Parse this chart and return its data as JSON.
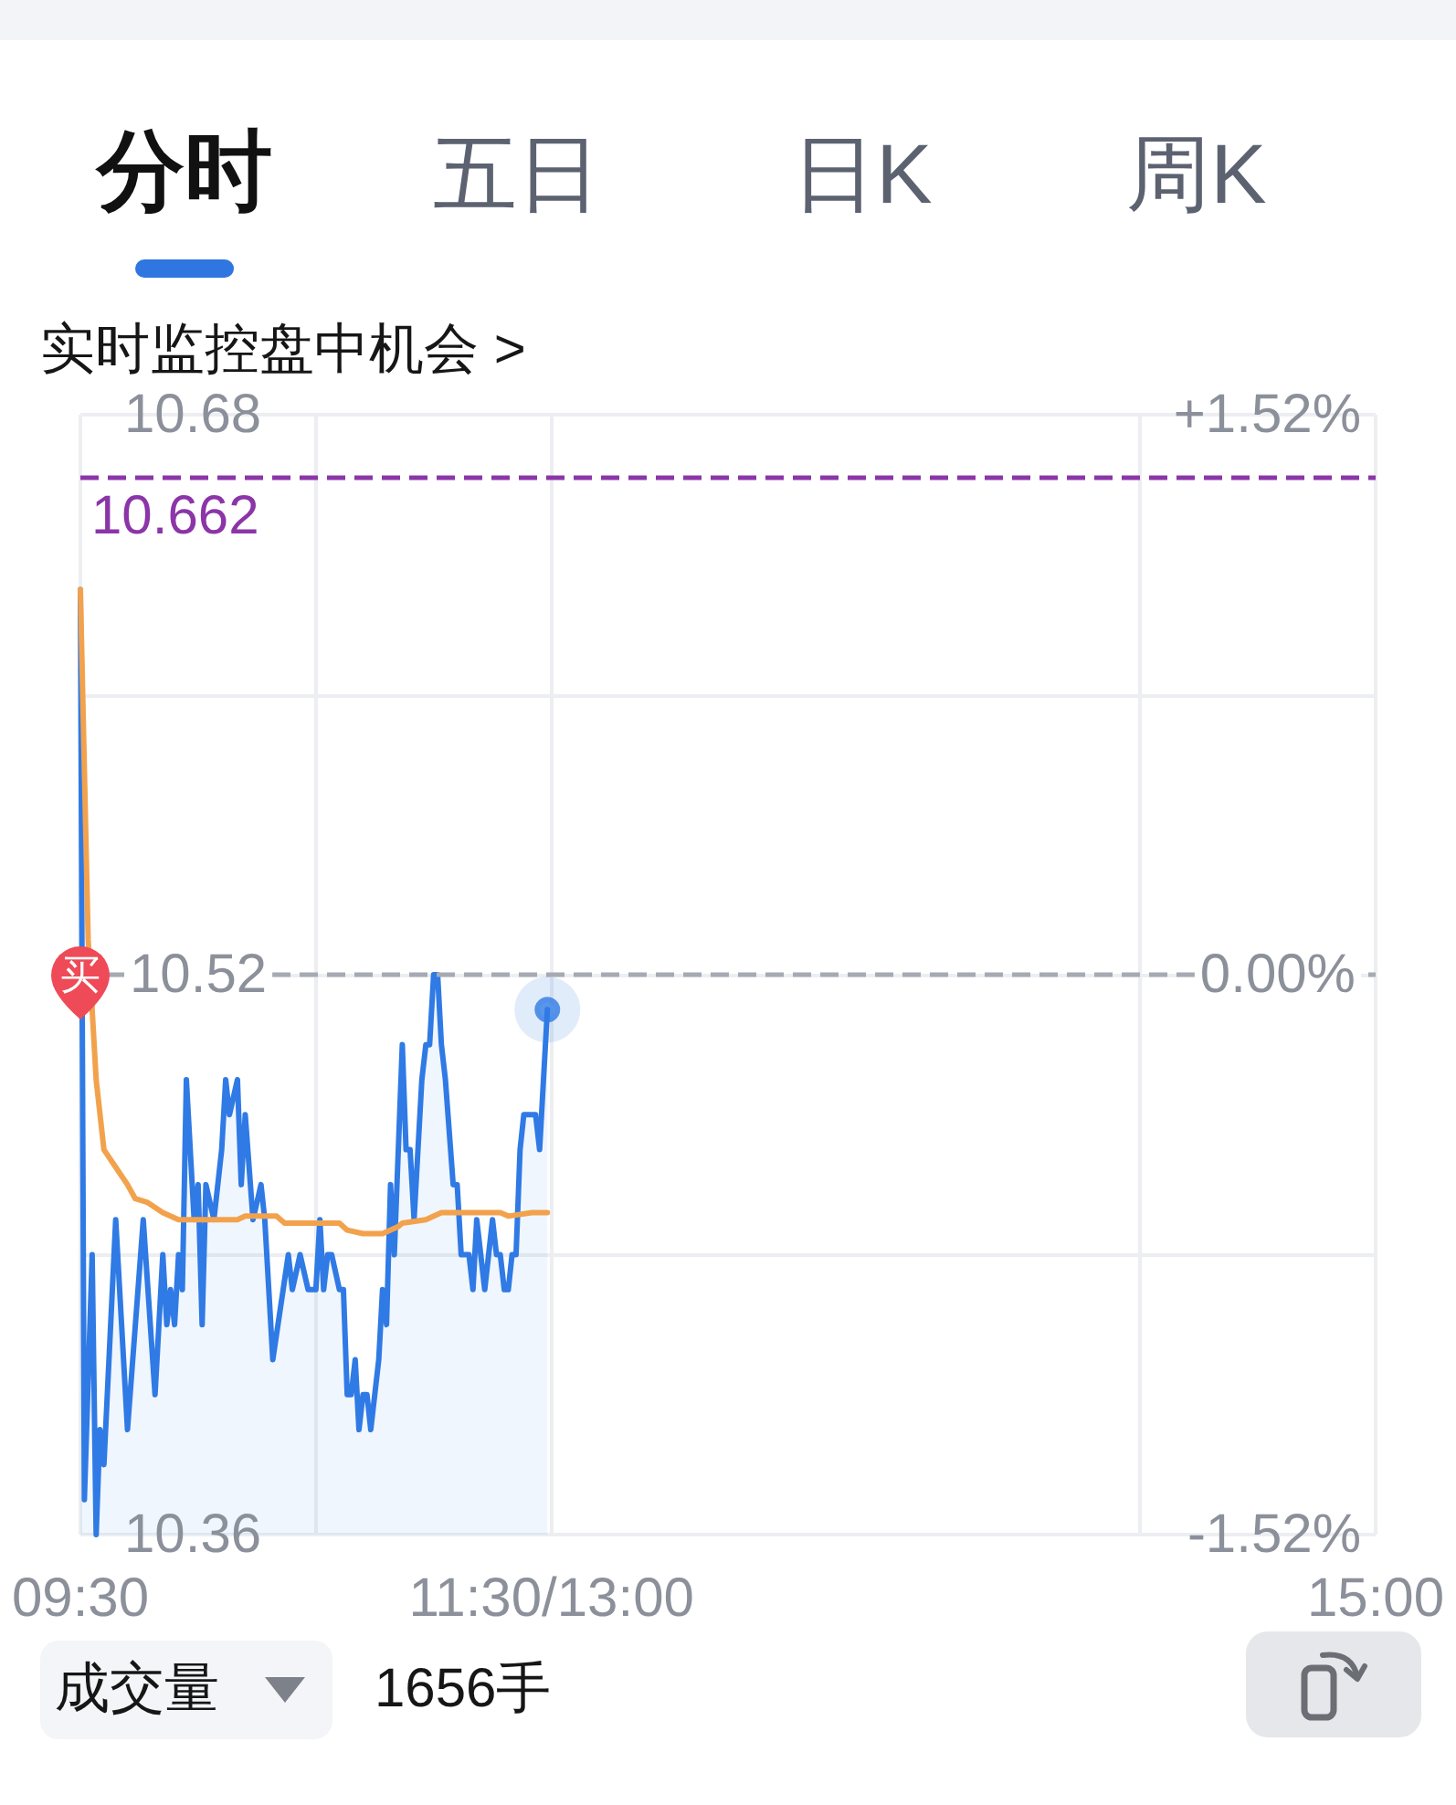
{
  "chart_data": {
    "type": "line",
    "annotations": [
      "分时",
      "五日",
      "日K",
      "周K",
      "实时监控盘中机会 >",
      "成交量",
      "1656手",
      {
        "text": "买",
        "x": 9.5,
        "y": 10.52
      }
    ],
    "xlim": [
      9.5,
      15
    ],
    "xticks": [
      {
        "value": 9.5,
        "label": "09:30"
      },
      {
        "value": 10.5,
        "label": null
      },
      {
        "value": 11.5,
        "label": "11:30/13:00"
      },
      {
        "value": 14,
        "label": null
      },
      {
        "value": 15,
        "label": "15:00"
      }
    ],
    "ylim": [
      10.36,
      10.68
    ],
    "yticks": [
      10.36,
      {
        "value": 10.44,
        "label": null
      },
      10.52,
      {
        "value": 10.6,
        "label": null
      },
      10.68
    ],
    "y2lim": [
      -1.52,
      1.52
    ],
    "y2ticks": [
      {
        "value": -1.52,
        "label": "-1.52%"
      },
      {
        "value": 0,
        "label": "0.00%"
      },
      {
        "value": 1.52,
        "label": "+1.52%"
      }
    ],
    "grid": true,
    "ref_lines": [
      {
        "axis": "y",
        "value": 10.662,
        "label": "10.662",
        "color": "#8b35a8",
        "line_style": "dashed"
      },
      {
        "axis": "y",
        "value": 10.52,
        "color": "#a6aab2",
        "line_style": "dashed"
      }
    ],
    "series": [
      {
        "type": "area",
        "color": "#2f7ae5",
        "x": [
          9.5,
          9.517,
          9.55,
          9.567,
          9.583,
          9.6,
          9.65,
          9.7,
          9.767,
          9.817,
          9.85,
          9.867,
          9.883,
          9.9,
          9.917,
          9.933,
          9.95,
          9.983,
          10,
          10.017,
          10.033,
          10.067,
          10.1,
          10.117,
          10.133,
          10.167,
          10.183,
          10.2,
          10.233,
          10.267,
          10.283,
          10.317,
          10.383,
          10.4,
          10.433,
          10.467,
          10.5,
          10.517,
          10.533,
          10.55,
          10.567,
          10.6,
          10.617,
          10.633,
          10.65,
          10.667,
          10.683,
          10.7,
          10.717,
          10.733,
          10.767,
          10.783,
          10.8,
          10.817,
          10.833,
          10.85,
          10.867,
          10.883,
          10.9,
          10.917,
          10.95,
          10.967,
          10.983,
          11,
          11.017,
          11.033,
          11.05,
          11.083,
          11.1,
          11.117,
          11.15,
          11.167,
          11.183,
          11.217,
          11.25,
          11.267,
          11.283,
          11.3,
          11.317,
          11.333,
          11.35,
          11.367,
          11.383,
          11.433,
          11.45,
          11.483
        ],
        "values": [
          10.63,
          10.37,
          10.44,
          10.36,
          10.39,
          10.38,
          10.45,
          10.39,
          10.45,
          10.4,
          10.44,
          10.42,
          10.43,
          10.42,
          10.44,
          10.43,
          10.49,
          10.45,
          10.46,
          10.42,
          10.46,
          10.45,
          10.47,
          10.49,
          10.48,
          10.49,
          10.46,
          10.48,
          10.45,
          10.46,
          10.45,
          10.41,
          10.44,
          10.43,
          10.44,
          10.43,
          10.43,
          10.45,
          10.43,
          10.44,
          10.44,
          10.43,
          10.43,
          10.4,
          10.4,
          10.41,
          10.39,
          10.4,
          10.4,
          10.39,
          10.41,
          10.43,
          10.42,
          10.46,
          10.44,
          10.47,
          10.5,
          10.47,
          10.47,
          10.45,
          10.49,
          10.5,
          10.5,
          10.52,
          10.52,
          10.5,
          10.49,
          10.46,
          10.46,
          10.44,
          10.44,
          10.43,
          10.45,
          10.43,
          10.45,
          10.44,
          10.44,
          10.43,
          10.43,
          10.44,
          10.44,
          10.47,
          10.48,
          10.48,
          10.47,
          10.51
        ]
      },
      {
        "type": "line",
        "color": "#f2a24c",
        "x": [
          9.5,
          9.533,
          9.567,
          9.6,
          9.65,
          9.7,
          9.733,
          9.783,
          9.85,
          9.917,
          10.167,
          10.2,
          10.333,
          10.367,
          10.6,
          10.633,
          10.7,
          10.783,
          10.85,
          10.867,
          10.967,
          11.033,
          11.283,
          11.317,
          11.417,
          11.483
        ],
        "values": [
          10.63,
          10.53,
          10.49,
          10.47,
          10.465,
          10.46,
          10.456,
          10.455,
          10.452,
          10.45,
          10.45,
          10.451,
          10.451,
          10.449,
          10.449,
          10.447,
          10.446,
          10.446,
          10.448,
          10.449,
          10.45,
          10.452,
          10.452,
          10.451,
          10.452,
          10.452
        ]
      },
      {
        "type": "scatter",
        "color": "#2f7ae5",
        "marker": "circle",
        "x": [
          11.483
        ],
        "values": [
          10.51
        ]
      }
    ]
  }
}
